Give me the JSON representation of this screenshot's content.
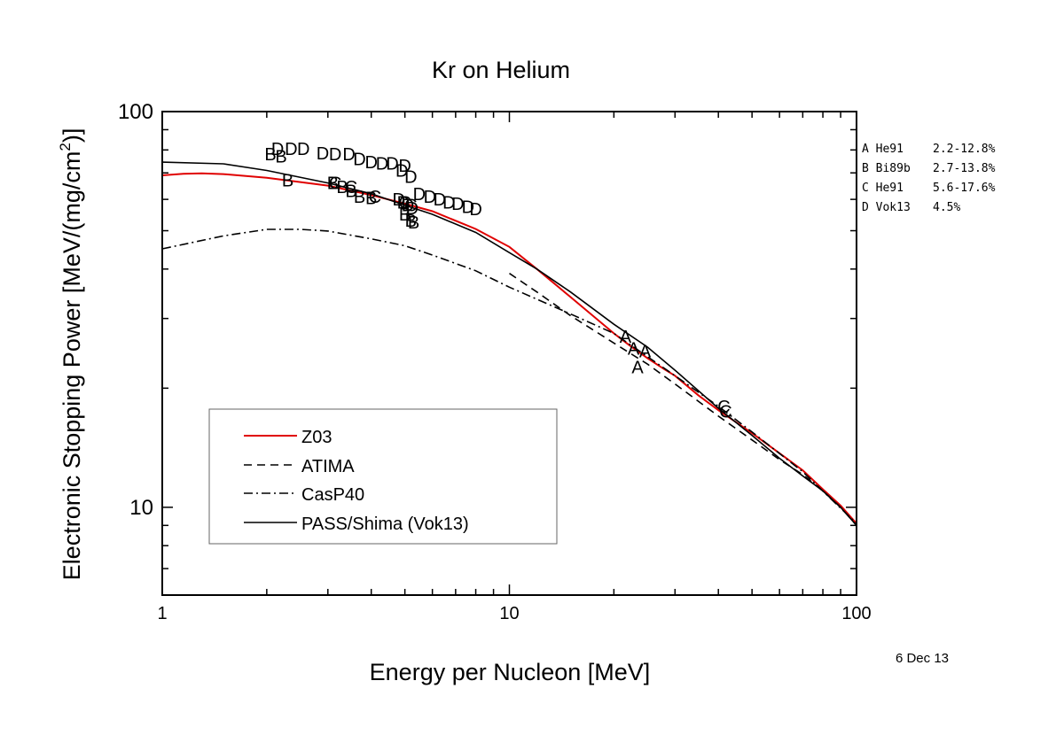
{
  "chart_data": {
    "type": "line",
    "title": "Kr on Helium",
    "xlabel": "Energy per Nucleon [MeV]",
    "ylabel_main": "Electronic Stopping Power [MeV/(mg/cm",
    "ylabel_sup": "2",
    "ylabel_end": ")]",
    "x_scale": "log",
    "y_scale": "log",
    "xlim": [
      1,
      100
    ],
    "ylim": [
      6,
      100
    ],
    "x_ticks": [
      {
        "value": 1,
        "label": "1"
      },
      {
        "value": 10,
        "label": "10"
      },
      {
        "value": 100,
        "label": "100"
      }
    ],
    "y_ticks": [
      {
        "value": 10,
        "label": "10"
      },
      {
        "value": 100,
        "label": "100"
      }
    ],
    "date": "6 Dec 13",
    "legend": {
      "placement": "lower-left",
      "entries": [
        {
          "label": "Z03",
          "color": "#e00000",
          "dash": "solid"
        },
        {
          "label": "ATIMA",
          "color": "#000000",
          "dash": "dashed"
        },
        {
          "label": "CasP40",
          "color": "#000000",
          "dash": "dashdot"
        },
        {
          "label": "PASS/Shima (Vok13)",
          "color": "#000000",
          "dash": "solid"
        }
      ]
    },
    "data_key": [
      {
        "letter": "A",
        "source": "He91",
        "range": "2.2-12.8%"
      },
      {
        "letter": "B",
        "source": "Bi89b",
        "range": "2.7-13.8%"
      },
      {
        "letter": "C",
        "source": "He91",
        "range": "5.6-17.6%"
      },
      {
        "letter": "D",
        "source": "Vok13",
        "range": "4.5%"
      }
    ],
    "series": [
      {
        "name": "Z03",
        "color": "#e00000",
        "dash": "solid",
        "points": [
          [
            1,
            69
          ],
          [
            1.15,
            69.6
          ],
          [
            1.3,
            69.8
          ],
          [
            1.5,
            69.5
          ],
          [
            2,
            68
          ],
          [
            3,
            65
          ],
          [
            4,
            61.5
          ],
          [
            5,
            58.5
          ],
          [
            6,
            56
          ],
          [
            8,
            50.5
          ],
          [
            10,
            45.5
          ],
          [
            12,
            40
          ],
          [
            15,
            34
          ],
          [
            20,
            27.5
          ],
          [
            22,
            25.8
          ],
          [
            25,
            23.8
          ],
          [
            28,
            22.3
          ],
          [
            30,
            21.5
          ],
          [
            35,
            19.2
          ],
          [
            40,
            17.6
          ],
          [
            50,
            15.4
          ],
          [
            60,
            13.7
          ],
          [
            70,
            12.4
          ],
          [
            80,
            11.1
          ],
          [
            90,
            10.1
          ],
          [
            100,
            9.1
          ]
        ]
      },
      {
        "name": "ATIMA",
        "color": "#000000",
        "dash": "dashed",
        "points": [
          [
            10,
            39
          ],
          [
            12,
            35
          ],
          [
            15,
            30.5
          ],
          [
            20,
            26
          ],
          [
            25,
            23
          ],
          [
            30,
            20.5
          ],
          [
            40,
            17
          ],
          [
            50,
            14.8
          ],
          [
            60,
            13.2
          ],
          [
            70,
            12.1
          ],
          [
            80,
            11
          ],
          [
            90,
            10
          ],
          [
            100,
            9
          ]
        ]
      },
      {
        "name": "CasP40",
        "color": "#000000",
        "dash": "dashdot",
        "points": [
          [
            1,
            45
          ],
          [
            1.5,
            48.5
          ],
          [
            2,
            50.4
          ],
          [
            2.5,
            50.4
          ],
          [
            3,
            49.9
          ],
          [
            4,
            47.7
          ],
          [
            5,
            45.8
          ],
          [
            6,
            43.4
          ],
          [
            8,
            39.6
          ],
          [
            10,
            36
          ],
          [
            15,
            30.8
          ],
          [
            20,
            27.5
          ],
          [
            30,
            21.5
          ],
          [
            40,
            18
          ],
          [
            50,
            15.5
          ],
          [
            70,
            12.3
          ],
          [
            100,
            9.1
          ]
        ]
      },
      {
        "name": "PASS/Shima (Vok13)",
        "color": "#000000",
        "dash": "solid",
        "points": [
          [
            1,
            74.5
          ],
          [
            1.5,
            73.8
          ],
          [
            2,
            71
          ],
          [
            3,
            66
          ],
          [
            4,
            62
          ],
          [
            5,
            58
          ],
          [
            6,
            55
          ],
          [
            8,
            49.5
          ],
          [
            10,
            44
          ],
          [
            12,
            40
          ],
          [
            15,
            35
          ],
          [
            20,
            29
          ],
          [
            25,
            25.4
          ],
          [
            30,
            22.2
          ],
          [
            40,
            17.8
          ],
          [
            50,
            15.2
          ],
          [
            60,
            13.3
          ],
          [
            70,
            12
          ],
          [
            80,
            11
          ],
          [
            90,
            10
          ],
          [
            100,
            9
          ]
        ]
      }
    ],
    "markers": [
      {
        "letter": "A",
        "points": [
          [
            21.6,
            27
          ],
          [
            22.8,
            25.2
          ],
          [
            23.4,
            22.6
          ],
          [
            24.6,
            24.8
          ]
        ]
      },
      {
        "letter": "B",
        "points": [
          [
            2.05,
            78
          ],
          [
            2.2,
            77
          ],
          [
            2.3,
            67
          ],
          [
            3.1,
            66
          ],
          [
            3.3,
            64.5
          ],
          [
            3.5,
            63
          ],
          [
            3.7,
            61
          ],
          [
            4.0,
            60.5
          ],
          [
            5.0,
            55
          ],
          [
            5.2,
            53
          ],
          [
            5.3,
            52.5
          ]
        ]
      },
      {
        "letter": "C",
        "points": [
          [
            3.15,
            66
          ],
          [
            3.5,
            64.5
          ],
          [
            4.1,
            61
          ],
          [
            5.0,
            59
          ],
          [
            5.2,
            58
          ],
          [
            41.5,
            18
          ],
          [
            42,
            17.5
          ]
        ]
      },
      {
        "letter": "D",
        "points": [
          [
            2.15,
            80.6
          ],
          [
            2.35,
            80.6
          ],
          [
            2.55,
            80.6
          ],
          [
            2.9,
            78.5
          ],
          [
            3.15,
            78
          ],
          [
            3.45,
            78
          ],
          [
            3.7,
            76
          ],
          [
            4.0,
            74.5
          ],
          [
            4.3,
            74
          ],
          [
            4.6,
            74
          ],
          [
            5.0,
            73
          ],
          [
            4.9,
            71
          ],
          [
            5.2,
            68.5
          ],
          [
            5.5,
            62
          ],
          [
            5.9,
            61
          ],
          [
            6.3,
            60
          ],
          [
            6.7,
            59
          ],
          [
            7.1,
            58.5
          ],
          [
            7.6,
            57.5
          ],
          [
            8.0,
            56.8
          ],
          [
            4.8,
            60
          ],
          [
            4.95,
            59
          ],
          [
            5.1,
            58
          ],
          [
            5.25,
            57
          ]
        ]
      }
    ]
  }
}
